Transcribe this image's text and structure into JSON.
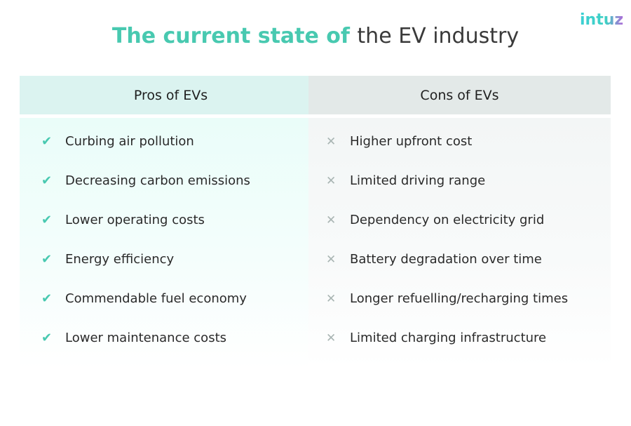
{
  "logo": "intuz",
  "title": {
    "accent": "The current state of",
    "rest": "the EV industry"
  },
  "pros": {
    "heading": "Pros of EVs",
    "items": [
      "Curbing air pollution",
      "Decreasing carbon emissions",
      "Lower operating costs",
      "Energy efficiency",
      "Commendable fuel economy",
      "Lower maintenance costs"
    ]
  },
  "cons": {
    "heading": "Cons of EVs",
    "items": [
      "Higher upfront cost",
      "Limited driving range",
      "Dependency on electricity grid",
      "Battery degradation over time",
      "Longer refuelling/recharging times",
      "Limited charging infrastructure"
    ]
  },
  "icons": {
    "pro": "check-icon",
    "con": "cross-icon"
  },
  "colors": {
    "accent": "#48c9b0",
    "pros_header": "#dbf3f0",
    "cons_header": "#e3e9e8",
    "cross": "#a9b5b3"
  }
}
